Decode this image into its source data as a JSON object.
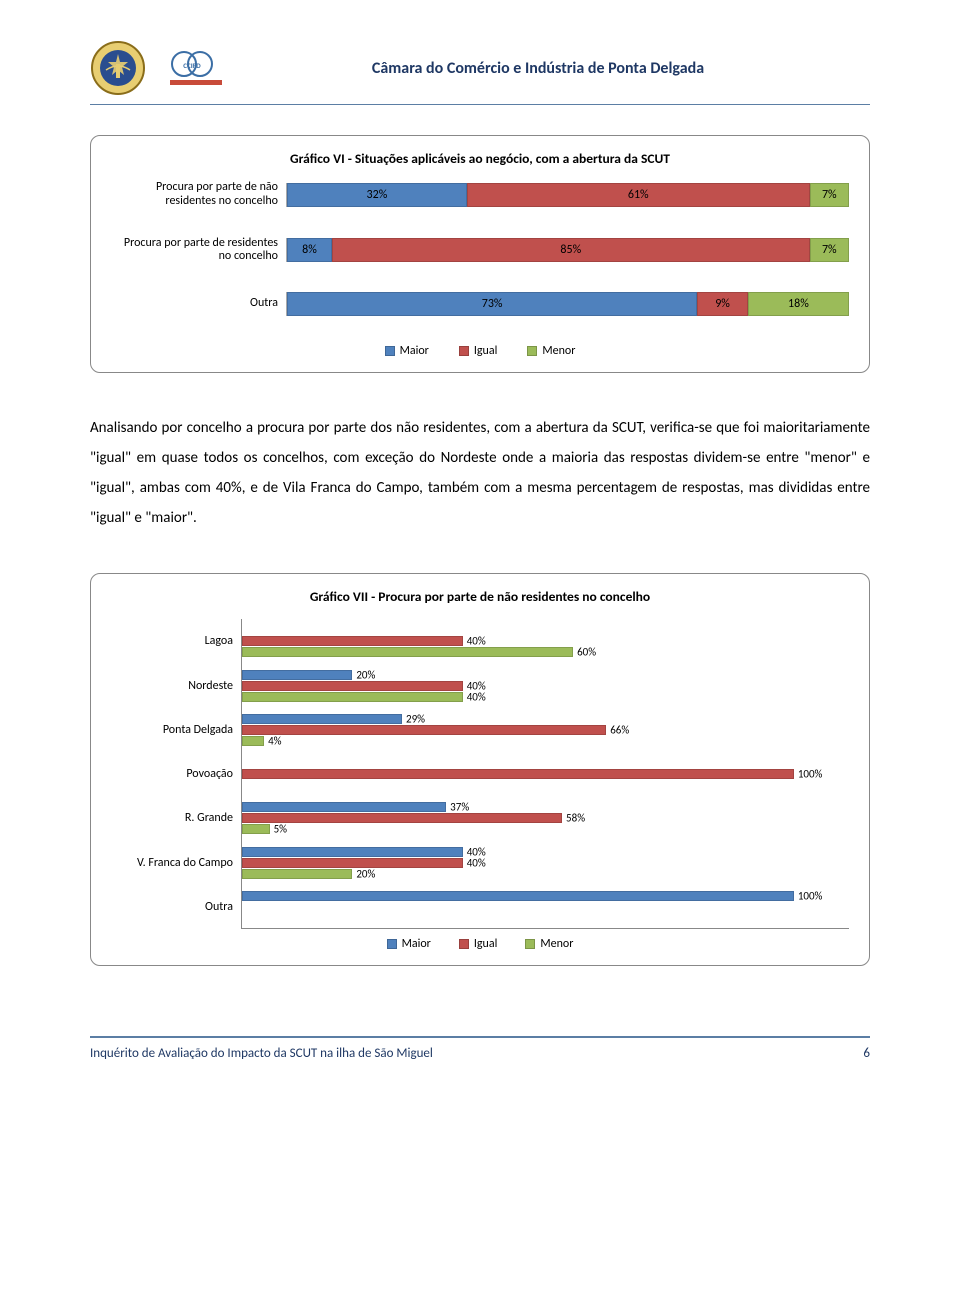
{
  "colors": {
    "maior": "#4f81bd",
    "igual": "#c0504d",
    "menor": "#9bbb59",
    "header_rule": "#5b7ea4",
    "header_text": "#1f3864"
  },
  "header": {
    "title": "Câmara do Comércio e Indústria de Ponta Delgada"
  },
  "chart6": {
    "title": "Gráfico VI - Situações aplicáveis ao negócio, com a abertura da SCUT",
    "rows": [
      {
        "label": "Procura por parte de não residentes no concelho",
        "segs": [
          {
            "v": 32,
            "t": "32%",
            "c": "maior"
          },
          {
            "v": 61,
            "t": "61%",
            "c": "igual"
          },
          {
            "v": 7,
            "t": "7%",
            "c": "menor"
          }
        ]
      },
      {
        "label": "Procura por parte de residentes no concelho",
        "segs": [
          {
            "v": 8,
            "t": "8%",
            "c": "maior"
          },
          {
            "v": 85,
            "t": "85%",
            "c": "igual"
          },
          {
            "v": 7,
            "t": "7%",
            "c": "menor"
          }
        ]
      },
      {
        "label": "Outra",
        "segs": [
          {
            "v": 73,
            "t": "73%",
            "c": "maior"
          },
          {
            "v": 9,
            "t": "9%",
            "c": "igual"
          },
          {
            "v": 18,
            "t": "18%",
            "c": "menor"
          }
        ]
      }
    ],
    "legend": [
      "Maior",
      "Igual",
      "Menor"
    ]
  },
  "paragraph": "Analisando por concelho a procura por parte dos não residentes, com a abertura da SCUT, verifica-se que foi maioritariamente \"igual\" em quase todos os concelhos, com exceção do Nordeste onde a maioria das respostas dividem-se entre \"menor\" e \"igual\", ambas com 40%, e de Vila Franca do Campo, também com a mesma percentagem de respostas, mas divididas entre \"igual\" e \"maior\".",
  "chart7": {
    "title": "Gráfico VII - Procura por parte de não residentes no concelho",
    "categories": [
      "Lagoa",
      "Nordeste",
      "Ponta Delgada",
      "Povoação",
      "R. Grande",
      "V. Franca do Campo",
      "Outra"
    ],
    "series": [
      {
        "name": "Maior",
        "color": "maior",
        "values": [
          0,
          20,
          29,
          0,
          37,
          40,
          100
        ]
      },
      {
        "name": "Igual",
        "color": "igual",
        "values": [
          40,
          40,
          66,
          100,
          58,
          40,
          0
        ]
      },
      {
        "name": "Menor",
        "color": "menor",
        "values": [
          60,
          40,
          4,
          0,
          5,
          20,
          0
        ]
      }
    ],
    "value_labels": {
      "Lagoa": {
        "Igual": "40%",
        "Menor": "60%"
      },
      "Nordeste": {
        "Maior": "20%",
        "Igual": "40%",
        "Menor": "40%"
      },
      "Ponta Delgada": {
        "Maior": "29%",
        "Igual": "66%",
        "Menor": "4%"
      },
      "Povoação": {
        "Igual": "100%"
      },
      "R. Grande": {
        "Maior": "37%",
        "Igual": "58%",
        "Menor": "5%"
      },
      "V. Franca do Campo": {
        "Maior": "40%",
        "Igual": "40%",
        "Menor": "20%"
      },
      "Outra": {
        "Maior": "100%"
      }
    },
    "xmax": 110,
    "legend": [
      "Maior",
      "Igual",
      "Menor"
    ]
  },
  "footer": {
    "text": "Inquérito de Avaliação do Impacto da SCUT na ilha de São Miguel",
    "page": "6"
  }
}
